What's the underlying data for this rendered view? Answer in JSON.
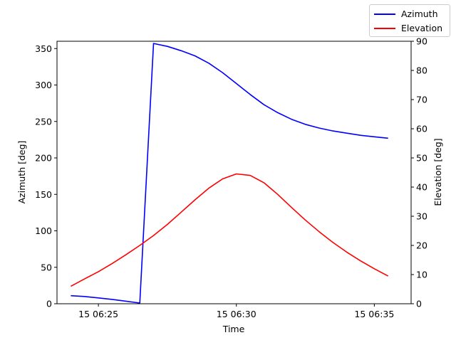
{
  "chart_data": {
    "type": "line",
    "xlabel": "Time",
    "ylabel_left": "Azimuth [deg]",
    "ylabel_right": "Elevation [deg]",
    "x_ticks": [
      {
        "label": "15 06:25",
        "value": "06:25"
      },
      {
        "label": "15 06:30",
        "value": "06:30"
      },
      {
        "label": "15 06:35",
        "value": "06:35"
      }
    ],
    "x_range": [
      "06:23:30",
      "06:36:20"
    ],
    "y_left_range": [
      0,
      360
    ],
    "y_left_ticks": [
      0,
      50,
      100,
      150,
      200,
      250,
      300,
      350
    ],
    "y_right_range": [
      0,
      90
    ],
    "y_right_ticks": [
      0,
      10,
      20,
      30,
      40,
      50,
      60,
      70,
      80,
      90
    ],
    "grid": false,
    "legend_position": "top-right",
    "series": [
      {
        "name": "Azimuth",
        "axis": "left",
        "color": "#0000ff",
        "points": [
          [
            "06:24:00",
            11
          ],
          [
            "06:24:30",
            10
          ],
          [
            "06:25:00",
            8
          ],
          [
            "06:25:30",
            6
          ],
          [
            "06:26:00",
            3.5
          ],
          [
            "06:26:30",
            1
          ],
          [
            "06:27:00",
            357
          ],
          [
            "06:27:30",
            353
          ],
          [
            "06:28:00",
            347
          ],
          [
            "06:28:30",
            340
          ],
          [
            "06:29:00",
            330
          ],
          [
            "06:29:30",
            317
          ],
          [
            "06:30:00",
            302
          ],
          [
            "06:30:30",
            287
          ],
          [
            "06:31:00",
            273
          ],
          [
            "06:31:30",
            262
          ],
          [
            "06:32:00",
            253
          ],
          [
            "06:32:30",
            246
          ],
          [
            "06:33:00",
            241
          ],
          [
            "06:33:30",
            237
          ],
          [
            "06:34:00",
            234
          ],
          [
            "06:34:30",
            231
          ],
          [
            "06:35:00",
            229
          ],
          [
            "06:35:30",
            227
          ]
        ]
      },
      {
        "name": "Elevation",
        "axis": "right",
        "color": "#ff0000",
        "points": [
          [
            "06:24:00",
            6
          ],
          [
            "06:24:30",
            8.5
          ],
          [
            "06:25:00",
            11
          ],
          [
            "06:25:30",
            13.8
          ],
          [
            "06:26:00",
            16.8
          ],
          [
            "06:26:30",
            20
          ],
          [
            "06:27:00",
            23.4
          ],
          [
            "06:27:30",
            27.2
          ],
          [
            "06:28:00",
            31.4
          ],
          [
            "06:28:30",
            35.6
          ],
          [
            "06:29:00",
            39.6
          ],
          [
            "06:29:30",
            42.8
          ],
          [
            "06:30:00",
            44.5
          ],
          [
            "06:30:30",
            44
          ],
          [
            "06:31:00",
            41.5
          ],
          [
            "06:31:30",
            37.5
          ],
          [
            "06:32:00",
            33
          ],
          [
            "06:32:30",
            28.7
          ],
          [
            "06:33:00",
            24.7
          ],
          [
            "06:33:30",
            21
          ],
          [
            "06:34:00",
            17.7
          ],
          [
            "06:34:30",
            14.7
          ],
          [
            "06:35:00",
            12
          ],
          [
            "06:35:30",
            9.5
          ]
        ]
      }
    ]
  }
}
